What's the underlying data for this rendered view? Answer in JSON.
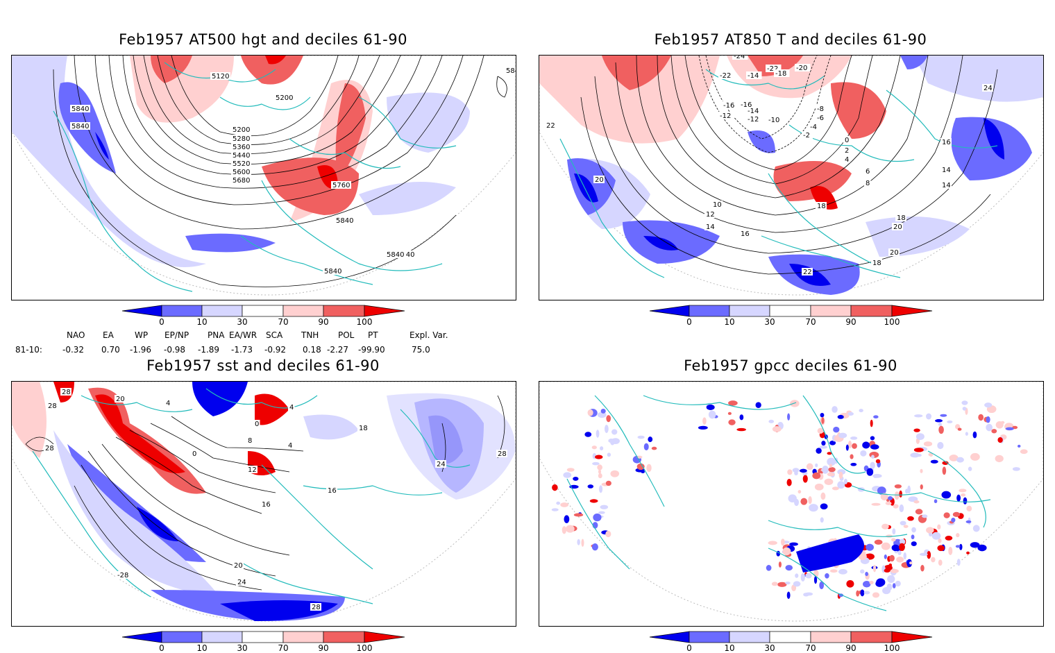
{
  "panels": {
    "p1": {
      "title": "Feb1957 AT500 hgt and deciles 61-90",
      "contour_labels": [
        "5840",
        "5840",
        "5840",
        "5120",
        "5200",
        "5200",
        "5280",
        "5360",
        "5440",
        "5520",
        "5600",
        "5680",
        "5760",
        "5840",
        "5840",
        "5840",
        "5840"
      ]
    },
    "p2": {
      "title": "Feb1957 AT850 T and deciles 61-90",
      "contour_labels": [
        "-24",
        "-22",
        "-22",
        "-20",
        "-18",
        "-16",
        "-14",
        "-14",
        "-12",
        "-10",
        "-8",
        "-6",
        "-4",
        "-2",
        "0",
        "2",
        "4",
        "6",
        "8",
        "10",
        "12",
        "14",
        "16",
        "18",
        "20",
        "22",
        "24",
        "16",
        "14",
        "14",
        "18",
        "20",
        "22",
        "16",
        "18",
        "20",
        "-16",
        "-12"
      ]
    },
    "p3": {
      "title": "Feb1957 sst and deciles 61-90",
      "contour_labels": [
        "28",
        "28",
        "28",
        "20",
        "4",
        "0",
        "4",
        "0",
        "4",
        "8",
        "12",
        "16",
        "16",
        "18",
        "24",
        "28",
        "20",
        "24",
        "28",
        "-28"
      ]
    },
    "p4": {
      "title": "Feb1957 gpcc deciles 61-90"
    }
  },
  "colorbar": {
    "tick_labels": [
      "0",
      "10",
      "30",
      "70",
      "90",
      "100"
    ],
    "colors": [
      "#0000ee",
      "#6b6bff",
      "#d6d6ff",
      "#ffffff",
      "#ffd0d0",
      "#f06060",
      "#ee0000"
    ]
  },
  "indices": {
    "headers": [
      "NAO",
      "EA",
      "WP",
      "EP/NP",
      "PNA",
      "EA/WR",
      "SCA",
      "TNH",
      "POL",
      "PT",
      "Expl. Var."
    ],
    "row_label": "81-10:",
    "values": [
      "-0.32",
      "0.70",
      "-1.96",
      "-0.98",
      "-1.89",
      "-1.73",
      "-0.92",
      "0.18",
      "-2.27",
      "-99.90",
      "75.0"
    ]
  }
}
